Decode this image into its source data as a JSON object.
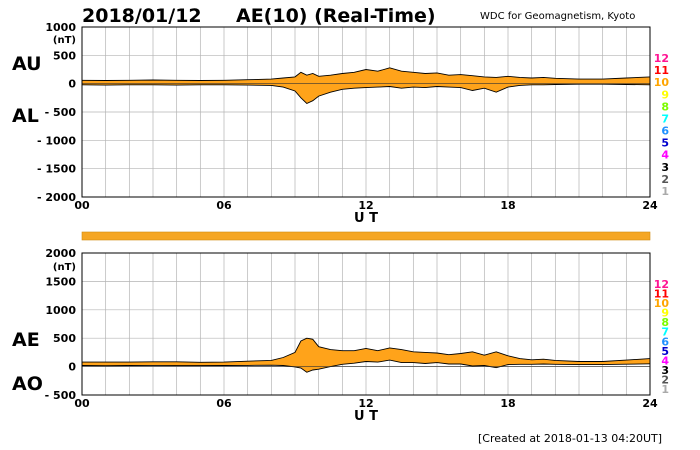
{
  "header": {
    "date": "2018/01/12",
    "title": "AE(10) (Real-Time)",
    "organization": "WDC for Geomagnetism, Kyoto"
  },
  "footer": {
    "created": "[Created at 2018-01-13 04:20UT]"
  },
  "colors": {
    "fill": "#ffa31a",
    "outline": "#000000",
    "grid": "#b4b4b4",
    "bar": "#f5a623"
  },
  "station_counts": [
    {
      "label": "12",
      "color": "#ff1493"
    },
    {
      "label": "11",
      "color": "#ff0000"
    },
    {
      "label": "10",
      "color": "#ffa500"
    },
    {
      "label": "9",
      "color": "#ffff00"
    },
    {
      "label": "8",
      "color": "#7cfc00"
    },
    {
      "label": "7",
      "color": "#00ffff"
    },
    {
      "label": "6",
      "color": "#1e90ff"
    },
    {
      "label": "5",
      "color": "#0000cd"
    },
    {
      "label": "4",
      "color": "#ff00ff"
    },
    {
      "label": "3",
      "color": "#000000"
    },
    {
      "label": "2",
      "color": "#555555"
    },
    {
      "label": "1",
      "color": "#aaaaaa"
    }
  ],
  "chart_data": [
    {
      "type": "area",
      "left_labels": [
        "AU",
        "AL"
      ],
      "unit": "(nT)",
      "xlabel": "U T",
      "xlim": [
        0,
        24
      ],
      "xticks": [
        "00",
        "06",
        "12",
        "18",
        "24"
      ],
      "ylim": [
        -2000,
        1000
      ],
      "yticks": [
        "1000",
        "500",
        "0",
        "- 500",
        "- 1000",
        "- 1500",
        "- 2000"
      ],
      "grid": true,
      "x": [
        0,
        1,
        2,
        3,
        4,
        5,
        6,
        7,
        8,
        8.5,
        9,
        9.25,
        9.5,
        9.75,
        10,
        10.5,
        11,
        11.5,
        12,
        12.5,
        13,
        13.5,
        14,
        14.5,
        15,
        15.5,
        16,
        16.5,
        17,
        17.5,
        18,
        18.5,
        19,
        19.5,
        20,
        21,
        22,
        23,
        24
      ],
      "series": [
        {
          "name": "AU",
          "values": [
            60,
            55,
            60,
            65,
            60,
            55,
            60,
            70,
            80,
            100,
            120,
            200,
            150,
            180,
            130,
            150,
            180,
            200,
            250,
            220,
            280,
            220,
            200,
            180,
            190,
            150,
            160,
            140,
            120,
            110,
            130,
            110,
            100,
            110,
            95,
            80,
            80,
            100,
            120
          ]
        },
        {
          "name": "AL",
          "values": [
            -20,
            -25,
            -20,
            -20,
            -25,
            -20,
            -20,
            -25,
            -30,
            -60,
            -130,
            -250,
            -350,
            -300,
            -220,
            -150,
            -100,
            -80,
            -70,
            -60,
            -50,
            -80,
            -60,
            -70,
            -50,
            -60,
            -70,
            -120,
            -80,
            -150,
            -60,
            -30,
            -20,
            -20,
            -15,
            -10,
            -10,
            -15,
            -20
          ]
        }
      ]
    },
    {
      "type": "area",
      "left_labels": [
        "AE",
        "AO"
      ],
      "unit": "(nT)",
      "xlabel": "U T",
      "xlim": [
        0,
        24
      ],
      "xticks": [
        "00",
        "06",
        "12",
        "18",
        "24"
      ],
      "ylim": [
        -500,
        2000
      ],
      "yticks": [
        "2000",
        "1500",
        "1000",
        "500",
        "0",
        "- 500"
      ],
      "grid": true,
      "x": [
        0,
        1,
        2,
        3,
        4,
        5,
        6,
        7,
        8,
        8.5,
        9,
        9.25,
        9.5,
        9.75,
        10,
        10.5,
        11,
        11.5,
        12,
        12.5,
        13,
        13.5,
        14,
        14.5,
        15,
        15.5,
        16,
        16.5,
        17,
        17.5,
        18,
        18.5,
        19,
        19.5,
        20,
        21,
        22,
        23,
        24
      ],
      "series": [
        {
          "name": "AE",
          "values": [
            80,
            80,
            80,
            85,
            85,
            75,
            80,
            95,
            110,
            160,
            250,
            450,
            500,
            480,
            350,
            300,
            280,
            280,
            320,
            280,
            330,
            300,
            260,
            250,
            240,
            210,
            230,
            260,
            200,
            260,
            190,
            140,
            120,
            130,
            110,
            90,
            90,
            115,
            140
          ]
        },
        {
          "name": "AO",
          "values": [
            20,
            15,
            20,
            22,
            18,
            18,
            20,
            22,
            25,
            20,
            -5,
            -25,
            -100,
            -60,
            -45,
            0,
            40,
            60,
            90,
            80,
            115,
            70,
            70,
            55,
            70,
            45,
            45,
            10,
            20,
            -20,
            35,
            40,
            40,
            45,
            40,
            35,
            35,
            42,
            50
          ]
        }
      ]
    }
  ]
}
